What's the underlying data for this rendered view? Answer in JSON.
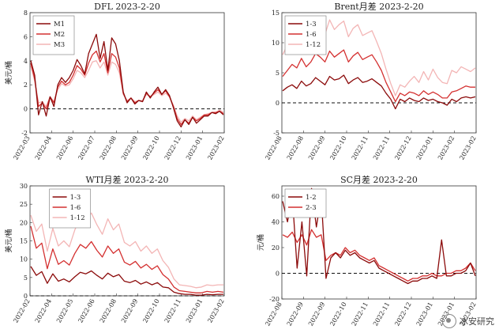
{
  "watermark": {
    "text": "冰安研究",
    "icon": "wechat-logo-icon"
  },
  "chart_data": [
    {
      "type": "line",
      "title": "DFL 2023-2-20",
      "ylabel": "美元/桶",
      "ylim": [
        -2,
        8
      ],
      "yticks": [
        -2,
        0,
        2,
        4,
        6,
        8
      ],
      "xticks": [
        "2022-03",
        "2022-04",
        "2022-06",
        "2022-07",
        "2022-08",
        "2022-09",
        "2022-10",
        "2022-12",
        "2023-01",
        "2023-02"
      ],
      "zero_line": true,
      "legend": "top-left",
      "series": [
        {
          "name": "M1",
          "color": "#8b0a0a",
          "values": [
            4,
            2.8,
            -0.5,
            0.6,
            -0.6,
            1.0,
            0.2,
            2.0,
            2.6,
            2.2,
            2.6,
            3.2,
            4.1,
            3.6,
            2.9,
            4.6,
            5.4,
            6.2,
            4.2,
            5.6,
            3.2,
            5.9,
            5.4,
            4.0,
            1.4,
            0.5,
            0.9,
            0.4,
            0.7,
            0.6,
            1.4,
            0.9,
            1.4,
            1.8,
            1.2,
            1.6,
            1.1,
            0.1,
            -1.0,
            -1.5,
            -0.9,
            -1.3,
            -0.7,
            -1.2,
            -0.9,
            -0.6,
            -0.6,
            -0.3,
            -0.4,
            -0.2,
            -0.5
          ]
        },
        {
          "name": "M2",
          "color": "#d43030",
          "values": [
            3.8,
            2.5,
            0.2,
            0.5,
            0.0,
            1.0,
            0.5,
            1.8,
            2.3,
            2.0,
            2.2,
            2.8,
            3.6,
            3.3,
            2.8,
            3.8,
            4.5,
            4.8,
            3.9,
            4.6,
            3.0,
            4.6,
            4.3,
            3.4,
            1.3,
            0.6,
            0.9,
            0.5,
            0.7,
            0.6,
            1.3,
            1.0,
            1.3,
            1.6,
            1.2,
            1.5,
            1.0,
            0.2,
            -0.8,
            -1.3,
            -0.9,
            -1.2,
            -0.7,
            -1.0,
            -0.8,
            -0.5,
            -0.5,
            -0.3,
            -0.3,
            -0.2,
            -0.4
          ]
        },
        {
          "name": "M3",
          "color": "#f3b5b5",
          "values": [
            3.6,
            2.3,
            0.5,
            0.6,
            0.2,
            1.0,
            0.6,
            1.6,
            2.1,
            1.9,
            2.0,
            2.5,
            3.2,
            3.0,
            2.6,
            3.2,
            3.9,
            4.0,
            3.4,
            3.9,
            2.8,
            3.9,
            3.7,
            3.0,
            1.2,
            0.7,
            0.9,
            0.6,
            0.7,
            0.7,
            1.2,
            1.0,
            1.2,
            1.4,
            1.1,
            1.3,
            1.0,
            0.3,
            -0.6,
            -1.1,
            -0.8,
            -1.0,
            -0.6,
            -0.9,
            -0.7,
            -0.5,
            -0.4,
            -0.3,
            -0.3,
            -0.1,
            -0.3
          ]
        }
      ]
    },
    {
      "type": "line",
      "title": "Brent月差 2023-2-20",
      "ylabel": "",
      "ylim": [
        -5,
        15
      ],
      "yticks": [
        -5,
        0,
        5,
        10,
        15
      ],
      "xticks": [
        "2022-08",
        "2022-08",
        "2022-09",
        "2022-10",
        "2022-11",
        "2022-11",
        "2022-12",
        "2023-01",
        "2023-02",
        "2023-02"
      ],
      "zero_line": true,
      "legend": "top-left",
      "series": [
        {
          "name": "1-3",
          "color": "#8b0a0a",
          "values": [
            2.0,
            2.6,
            3.0,
            2.4,
            3.6,
            2.8,
            3.2,
            4.2,
            3.6,
            3.0,
            4.4,
            3.8,
            4.0,
            4.6,
            3.2,
            3.8,
            4.2,
            3.4,
            3.6,
            4.0,
            3.4,
            2.8,
            1.6,
            0.6,
            -1.0,
            0.6,
            0.2,
            0.8,
            0.4,
            0.2,
            0.8,
            0.4,
            0.6,
            0.2,
            0.0,
            -0.4,
            0.6,
            0.2,
            0.8,
            1.0,
            0.8,
            1.0
          ]
        },
        {
          "name": "1-6",
          "color": "#d43030",
          "values": [
            4.4,
            5.4,
            6.4,
            5.8,
            7.4,
            6.0,
            6.8,
            8.2,
            7.6,
            6.8,
            8.6,
            7.6,
            8.2,
            8.8,
            6.8,
            7.8,
            8.4,
            7.2,
            7.6,
            8.0,
            6.8,
            5.4,
            3.4,
            1.8,
            0.2,
            1.6,
            1.2,
            1.8,
            1.6,
            1.2,
            2.0,
            1.4,
            1.8,
            1.4,
            0.8,
            0.8,
            1.8,
            2.0,
            2.4,
            2.8,
            2.6,
            2.6
          ]
        },
        {
          "name": "1-12",
          "color": "#f3b5b5",
          "values": [
            8.0,
            9.6,
            10.8,
            9.6,
            12.4,
            10.2,
            11.4,
            13.6,
            12.6,
            11.4,
            13.8,
            12.2,
            13.0,
            13.6,
            11.0,
            12.4,
            13.0,
            11.2,
            11.6,
            12.0,
            10.2,
            8.2,
            5.6,
            3.2,
            1.2,
            3.0,
            2.6,
            3.6,
            4.4,
            3.4,
            5.2,
            3.8,
            5.6,
            4.2,
            3.4,
            3.2,
            5.4,
            5.0,
            6.0,
            5.6,
            5.2,
            5.8
          ]
        }
      ]
    },
    {
      "type": "line",
      "title": "WTI月差 2023-2-20",
      "ylabel": "美元/桶",
      "ylim": [
        0,
        30
      ],
      "yticks": [
        0,
        5,
        10,
        15,
        20,
        25,
        30
      ],
      "xticks": [
        "2022-02",
        "2022-04",
        "2022-05",
        "2022-06",
        "2022-08",
        "2022-09",
        "2022-10",
        "2022-11",
        "2023-01",
        "2023-02"
      ],
      "zero_line": true,
      "legend": "top-right",
      "series": [
        {
          "name": "1-3",
          "color": "#8b0a0a",
          "values": [
            8.0,
            5.6,
            6.6,
            3.4,
            6.0,
            4.0,
            4.6,
            3.8,
            5.2,
            6.4,
            6.0,
            6.8,
            5.6,
            4.6,
            6.2,
            5.2,
            5.8,
            4.0,
            3.6,
            4.2,
            3.2,
            3.8,
            3.0,
            3.6,
            2.4,
            2.2,
            1.0,
            0.6,
            0.4,
            0.4,
            0.2,
            0.2,
            0.4,
            0.3,
            0.4,
            0.4
          ]
        },
        {
          "name": "1-6",
          "color": "#d43030",
          "values": [
            19.0,
            13.0,
            14.4,
            7.4,
            12.8,
            8.6,
            9.6,
            8.4,
            11.6,
            14.0,
            13.0,
            14.8,
            12.4,
            10.6,
            13.6,
            11.6,
            12.8,
            9.2,
            8.4,
            9.4,
            7.6,
            8.6,
            7.2,
            8.2,
            5.8,
            4.6,
            2.4,
            1.4,
            1.2,
            1.0,
            0.8,
            0.8,
            1.2,
            1.0,
            1.2,
            1.0
          ]
        },
        {
          "name": "1-12",
          "color": "#f3b5b5",
          "values": [
            22.0,
            17.6,
            19.6,
            12.2,
            18.4,
            13.6,
            15.0,
            13.4,
            18.0,
            21.6,
            20.2,
            22.6,
            19.4,
            16.8,
            21.0,
            18.0,
            19.6,
            14.6,
            13.6,
            14.8,
            12.2,
            13.6,
            11.6,
            12.8,
            9.6,
            7.8,
            4.6,
            3.0,
            2.8,
            2.6,
            2.2,
            2.4,
            3.0,
            2.8,
            3.0,
            3.0
          ]
        }
      ]
    },
    {
      "type": "line",
      "title": "SC月差 2023-2-20",
      "ylabel": "元/桶",
      "ylim": [
        -20,
        68
      ],
      "yticks": [
        -20,
        0,
        20,
        40,
        60
      ],
      "xticks": [
        "2022-08",
        "2022-09",
        "2022-09",
        "2022-10",
        "2022-11",
        "2022-11",
        "2022-12",
        "2023-01",
        "2023-01",
        "2023-02"
      ],
      "zero_line": true,
      "legend": "top-left",
      "series": [
        {
          "name": "1-2",
          "color": "#8b0a0a",
          "values": [
            56,
            40,
            60,
            4,
            40,
            -2,
            66,
            36,
            60,
            -4,
            12,
            16,
            12,
            18,
            14,
            16,
            12,
            10,
            8,
            10,
            4,
            2,
            0,
            -2,
            -4,
            -6,
            -8,
            -6,
            -6,
            -4,
            -4,
            -2,
            -4,
            26,
            -2,
            -2,
            0,
            0,
            2,
            8,
            -2
          ]
        },
        {
          "name": "2-3",
          "color": "#d43030",
          "values": [
            30,
            28,
            32,
            24,
            30,
            22,
            34,
            28,
            30,
            10,
            14,
            16,
            14,
            20,
            16,
            18,
            14,
            12,
            10,
            12,
            6,
            4,
            2,
            0,
            -2,
            -4,
            -6,
            -4,
            -4,
            -2,
            -2,
            0,
            -2,
            -2,
            0,
            0,
            2,
            2,
            4,
            8,
            2
          ]
        }
      ]
    }
  ]
}
